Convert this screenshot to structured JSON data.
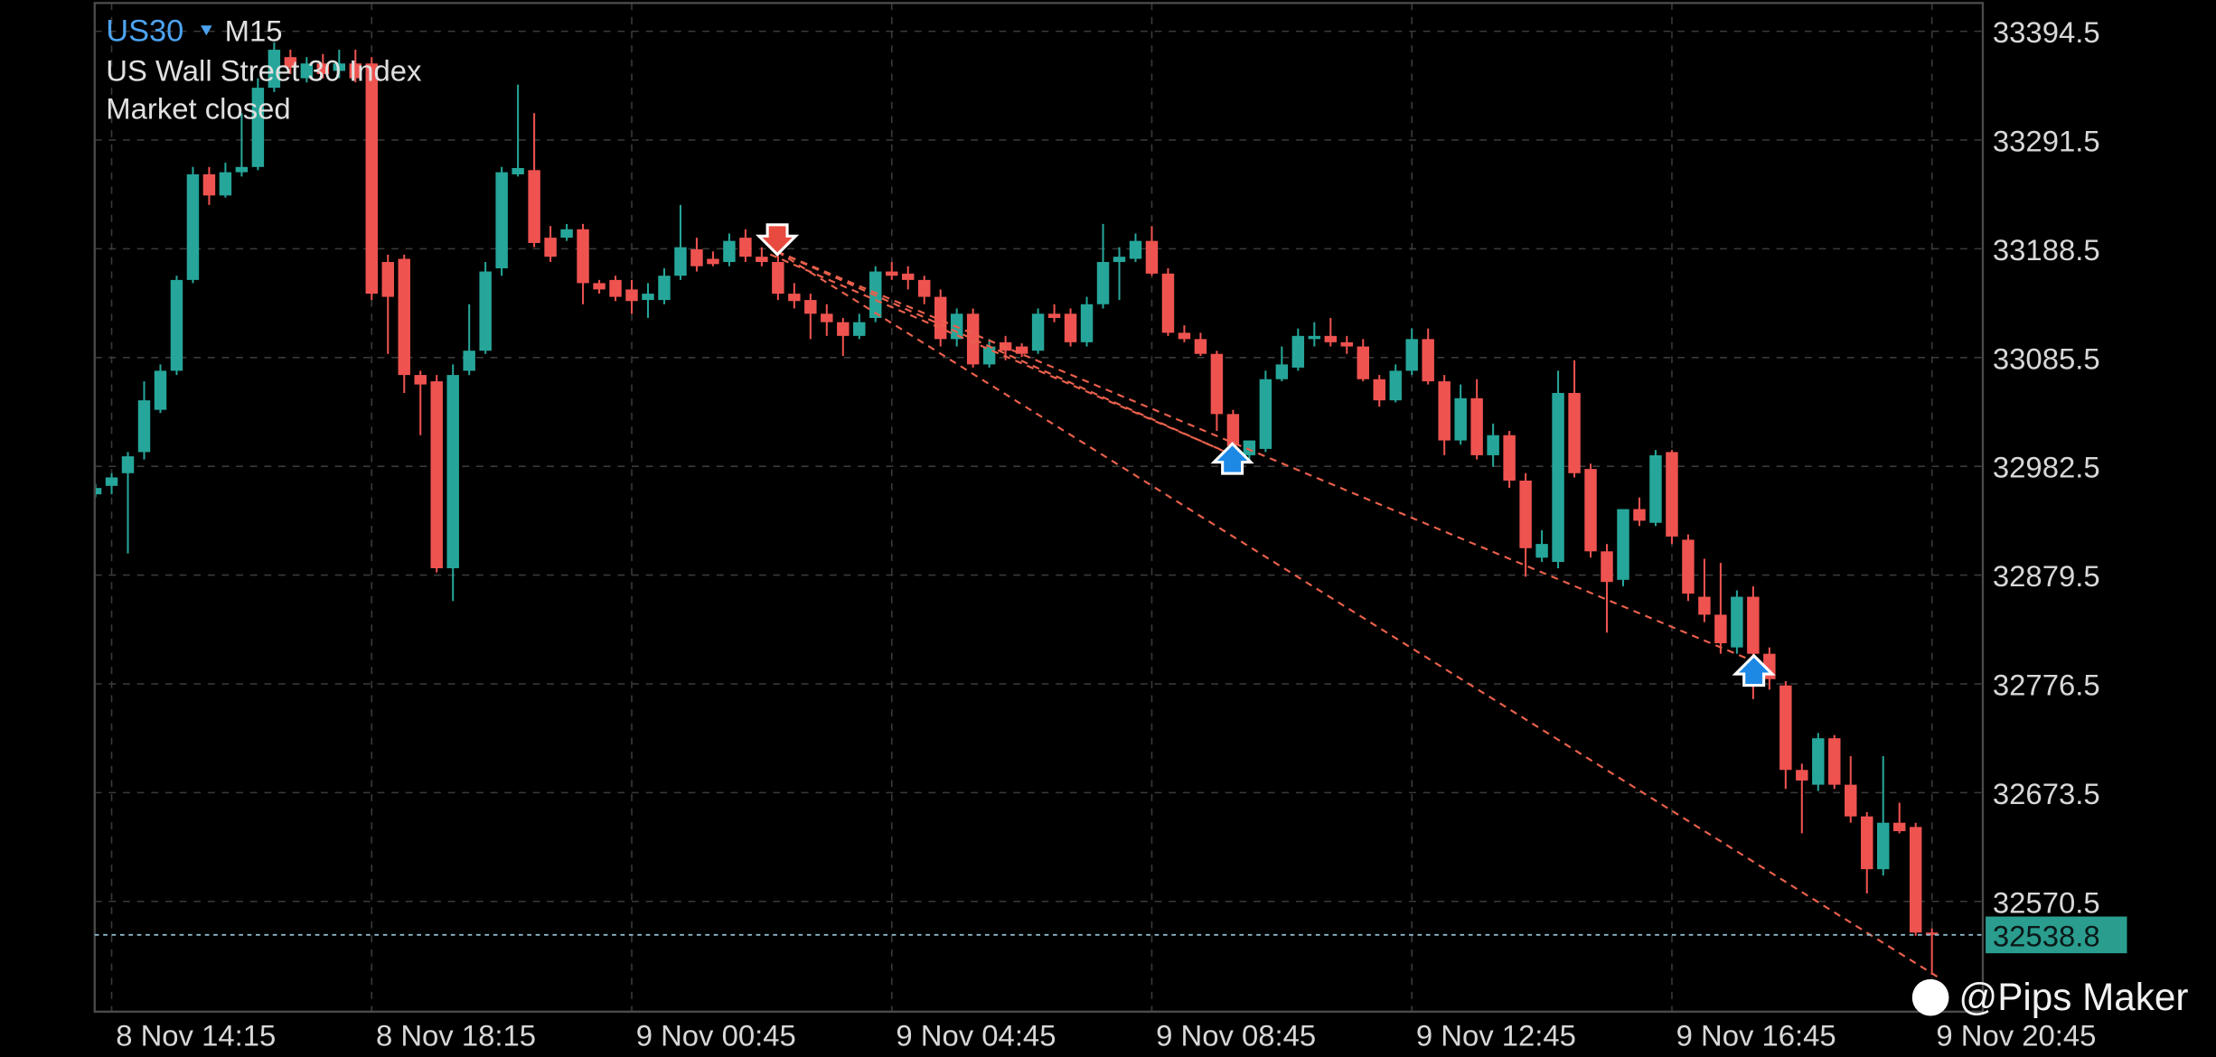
{
  "chart_data": {
    "type": "candlestick",
    "symbol": "US30",
    "timeframe": "M15",
    "title": "US Wall Street 30 Index",
    "subtitle": "Market closed",
    "watermark": "@Pips Maker",
    "up_color": "#26a69a",
    "down_color": "#ef5350",
    "grid": true,
    "ylim": [
      32466.1,
      33421.3
    ],
    "yticks": [
      32570.5,
      32673.5,
      32776.5,
      32879.5,
      32982.5,
      33085.5,
      33188.5,
      33291.5,
      33394.5
    ],
    "last_price": 32538.8,
    "categories": [
      null,
      "8 Nov 14:15",
      null,
      null,
      null,
      null,
      null,
      null,
      null,
      null,
      null,
      null,
      null,
      null,
      null,
      null,
      null,
      "8 Nov 18:15",
      null,
      null,
      null,
      null,
      null,
      null,
      null,
      null,
      null,
      null,
      null,
      null,
      null,
      null,
      null,
      "9 Nov 00:45",
      null,
      null,
      null,
      null,
      null,
      null,
      null,
      null,
      null,
      null,
      null,
      null,
      null,
      null,
      null,
      "9 Nov 04:45",
      null,
      null,
      null,
      null,
      null,
      null,
      null,
      null,
      null,
      null,
      null,
      null,
      null,
      null,
      null,
      "9 Nov 08:45",
      null,
      null,
      null,
      null,
      null,
      null,
      null,
      null,
      null,
      null,
      null,
      null,
      null,
      null,
      null,
      "9 Nov 12:45",
      null,
      null,
      null,
      null,
      null,
      null,
      null,
      null,
      null,
      null,
      null,
      null,
      null,
      null,
      null,
      "9 Nov 16:45",
      null,
      null,
      null,
      null,
      null,
      null,
      null,
      null,
      null,
      null,
      null,
      null,
      null,
      null,
      null,
      "9 Nov 20:45"
    ],
    "open": [
      32956,
      32964,
      32976,
      32996,
      33036,
      33073,
      33159,
      33259,
      33239,
      33261,
      33266,
      33341,
      33370,
      33350,
      33364,
      33357,
      33364,
      33364,
      33176,
      33179,
      33069,
      33063,
      32886,
      33073,
      33092,
      33170,
      33259,
      33263,
      33199,
      33199,
      33207,
      33156,
      33159,
      33150,
      33140,
      33140,
      33163,
      33188,
      33179,
      33176,
      33199,
      33181,
      33176,
      33146,
      33140,
      33127,
      33119,
      33106,
      33123,
      33167,
      33165,
      33159,
      33143,
      33103,
      33127,
      33079,
      33100,
      33096,
      33092,
      33127,
      33127,
      33100,
      33136,
      33176,
      33179,
      33196,
      33165,
      33109,
      33103,
      33089,
      33032,
      32993,
      32999,
      33065,
      33076,
      33103,
      33106,
      33100,
      33096,
      33065,
      33045,
      33073,
      33103,
      33063,
      33007,
      33047,
      32993,
      33012,
      32969,
      32896,
      32892,
      33052,
      32980,
      32902,
      32875,
      32942,
      32929,
      32996,
      32913,
      32859,
      32842,
      32811,
      32859,
      32805,
      32775,
      32695,
      32681,
      32725,
      32681,
      32651,
      32601,
      32645,
      32641,
      32541
    ],
    "high": [
      32966,
      32976,
      32996,
      33063,
      33079,
      33163,
      33266,
      33266,
      33270,
      33317,
      33350,
      33384,
      33377,
      33370,
      33373,
      33377,
      33377,
      33370,
      33183,
      33183,
      33073,
      33069,
      33079,
      33136,
      33176,
      33266,
      33344,
      33317,
      33210,
      33212,
      33212,
      33159,
      33163,
      33159,
      33156,
      33170,
      33230,
      33199,
      33186,
      33203,
      33207,
      33190,
      33203,
      33156,
      33146,
      33136,
      33123,
      33127,
      33172,
      33176,
      33172,
      33163,
      33150,
      33132,
      33132,
      33103,
      33106,
      33099,
      33132,
      33136,
      33132,
      33143,
      33212,
      33190,
      33203,
      33210,
      33170,
      33116,
      33109,
      33092,
      33036,
      33007,
      33073,
      33096,
      33113,
      33119,
      33123,
      33106,
      33103,
      33069,
      33079,
      33113,
      33113,
      33069,
      33060,
      33065,
      33023,
      33016,
      32976,
      32922,
      33073,
      33083,
      32985,
      32909,
      32942,
      32953,
      32998,
      32998,
      32918,
      32895,
      32891,
      32865,
      32869,
      32811,
      32779,
      32701,
      32730,
      32728,
      32708,
      32655,
      32708,
      32664,
      32645,
      32545
    ],
    "low": [
      32953,
      32956,
      32900,
      32989,
      33033,
      33069,
      33156,
      33230,
      33237,
      33257,
      33263,
      33337,
      33354,
      33346,
      33350,
      33350,
      33346,
      33140,
      33089,
      33052,
      33012,
      32882,
      32855,
      33069,
      33089,
      33163,
      33257,
      33190,
      33176,
      33196,
      33136,
      33146,
      33139,
      33127,
      33123,
      33136,
      33159,
      33167,
      33172,
      33172,
      33176,
      33172,
      33140,
      33132,
      33103,
      33106,
      33087,
      33103,
      33119,
      33159,
      33150,
      33136,
      33096,
      33096,
      33076,
      33076,
      33083,
      33086,
      33089,
      33119,
      33096,
      33096,
      33132,
      33140,
      33176,
      33163,
      33106,
      33100,
      33087,
      33016,
      32996,
      32989,
      32996,
      33063,
      33073,
      33096,
      33096,
      33089,
      33063,
      33039,
      33043,
      33069,
      33060,
      32993,
      33003,
      32989,
      32982,
      32962,
      32878,
      32892,
      32886,
      32972,
      32896,
      32825,
      32869,
      32926,
      32926,
      32909,
      32855,
      32835,
      32805,
      32805,
      32762,
      32771,
      32677,
      32635,
      32675,
      32677,
      32645,
      32578,
      32595,
      32635,
      32538,
      32501
    ],
    "close": [
      32962,
      32972,
      32992,
      33045,
      33073,
      33159,
      33259,
      33239,
      33261,
      33266,
      33341,
      33377,
      33360,
      33364,
      33354,
      33364,
      33350,
      33146,
      33143,
      33069,
      33060,
      32886,
      33069,
      33092,
      33167,
      33261,
      33265,
      33194,
      33181,
      33207,
      33156,
      33150,
      33143,
      33139,
      33146,
      33163,
      33190,
      33172,
      33174,
      33196,
      33181,
      33176,
      33146,
      33139,
      33127,
      33119,
      33106,
      33119,
      33167,
      33163,
      33159,
      33143,
      33103,
      33127,
      33079,
      33096,
      33092,
      33089,
      33127,
      33123,
      33100,
      33136,
      33176,
      33181,
      33196,
      33165,
      33109,
      33103,
      33089,
      33032,
      33002,
      33007,
      33065,
      33079,
      33106,
      33106,
      33100,
      33096,
      33065,
      33045,
      33073,
      33103,
      33063,
      33007,
      33047,
      32993,
      33012,
      32969,
      32905,
      32909,
      33052,
      32976,
      32902,
      32873,
      32942,
      32931,
      32993,
      32916,
      32862,
      32842,
      32815,
      32859,
      32805,
      32781,
      32695,
      32685,
      32725,
      32681,
      32651,
      32601,
      32645,
      32637,
      32541,
      32538.8
    ]
  }
}
